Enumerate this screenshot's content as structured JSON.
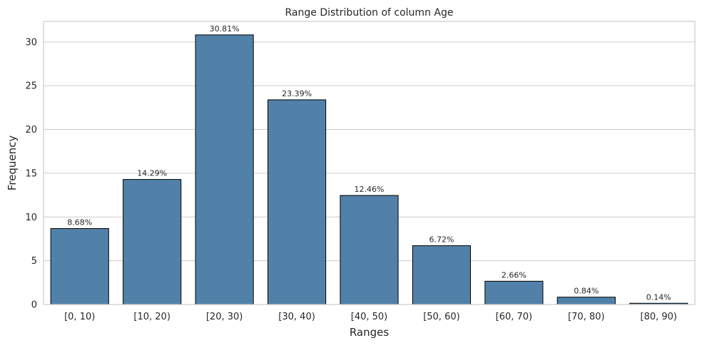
{
  "chart_data": {
    "type": "bar",
    "title": "Range Distribution of column Age",
    "xlabel": "Ranges",
    "ylabel": "Frequency",
    "categories": [
      "[0, 10)",
      "[10, 20)",
      "[20, 30)",
      "[30, 40)",
      "[40, 50)",
      "[50, 60)",
      "[60, 70)",
      "[70, 80)",
      "[80, 90)"
    ],
    "values": [
      8.68,
      14.29,
      30.81,
      23.39,
      12.46,
      6.72,
      2.66,
      0.84,
      0.14
    ],
    "data_labels": [
      "8.68%",
      "14.29%",
      "30.81%",
      "23.39%",
      "12.46%",
      "6.72%",
      "2.66%",
      "0.84%",
      "0.14%"
    ],
    "ylim": [
      0,
      32.35
    ],
    "yticks": [
      0,
      5,
      10,
      15,
      20,
      25,
      30
    ],
    "grid": "horizontal",
    "legend": "none",
    "colors": {
      "bar_fill": "#5181a8",
      "bar_edge": "#000000",
      "grid": "#cccccc",
      "spine": "#cccccc",
      "text": "#262626"
    }
  }
}
